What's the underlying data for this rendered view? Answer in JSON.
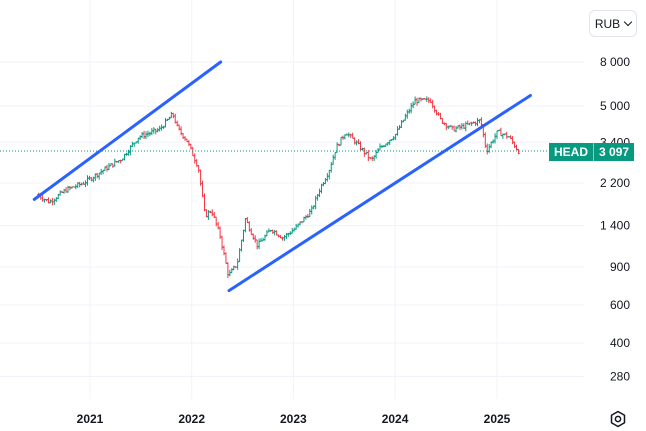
{
  "header": {
    "currency_label": "RUB"
  },
  "price_label": {
    "ticker": "HEAD",
    "value": "3 097",
    "numeric_value": 3097,
    "color": "#089981"
  },
  "icons": {
    "currency_chevron": "chevron-down-icon",
    "settings": "settings-icon"
  },
  "colors": {
    "up": "#089981",
    "down": "#f23645",
    "trendline": "#2962ff",
    "last_price_line": "#089981"
  },
  "chart_data": {
    "type": "ohlc",
    "title": "",
    "xlabel": "",
    "ylabel": "",
    "scale": "log",
    "grid": true,
    "x_ticks": [
      "2021",
      "2022",
      "2023",
      "2024",
      "2025"
    ],
    "x_tick_values": [
      "2021-01-01",
      "2022-01-01",
      "2023-01-01",
      "2024-01-01",
      "2025-01-01"
    ],
    "y_ticks": [
      "8 000",
      "5 000",
      "3 400",
      "2 200",
      "1 400",
      "900",
      "600",
      "400",
      "280"
    ],
    "y_tick_values": [
      8000,
      5000,
      3400,
      2200,
      1400,
      900,
      600,
      400,
      280
    ],
    "x_range": [
      "2020-04-01",
      "2025-12-15"
    ],
    "y_range": [
      210,
      12000
    ],
    "last_price": 3097,
    "series_path": [
      [
        "2020-07-01",
        1950
      ],
      [
        "2020-08-15",
        1800
      ],
      [
        "2020-10-15",
        2050
      ],
      [
        "2020-12-15",
        2200
      ],
      [
        "2021-03-01",
        2550
      ],
      [
        "2021-05-01",
        2850
      ],
      [
        "2021-07-01",
        3600
      ],
      [
        "2021-09-15",
        3900
      ],
      [
        "2021-11-01",
        4600
      ],
      [
        "2021-11-20",
        3900
      ],
      [
        "2021-12-20",
        3500
      ],
      [
        "2022-02-01",
        2600
      ],
      [
        "2022-02-25",
        1550
      ],
      [
        "2022-03-20",
        1650
      ],
      [
        "2022-04-20",
        1250
      ],
      [
        "2022-05-20",
        820
      ],
      [
        "2022-06-20",
        930
      ],
      [
        "2022-07-20",
        1500
      ],
      [
        "2022-09-01",
        1130
      ],
      [
        "2022-10-20",
        1350
      ],
      [
        "2022-12-01",
        1230
      ],
      [
        "2023-01-15",
        1360
      ],
      [
        "2023-03-15",
        1650
      ],
      [
        "2023-04-15",
        2100
      ],
      [
        "2023-05-15",
        2500
      ],
      [
        "2023-06-10",
        3200
      ],
      [
        "2023-07-15",
        3800
      ],
      [
        "2023-08-20",
        3400
      ],
      [
        "2023-10-15",
        2800
      ],
      [
        "2023-11-15",
        3200
      ],
      [
        "2024-01-10",
        3700
      ],
      [
        "2024-02-15",
        4500
      ],
      [
        "2024-03-20",
        5300
      ],
      [
        "2024-05-15",
        5300
      ],
      [
        "2024-06-20",
        4300
      ],
      [
        "2024-08-01",
        3900
      ],
      [
        "2024-09-15",
        4050
      ],
      [
        "2024-11-10",
        4300
      ],
      [
        "2024-12-01",
        3100
      ],
      [
        "2025-01-10",
        3800
      ],
      [
        "2025-02-20",
        3600
      ],
      [
        "2025-03-25",
        3097
      ]
    ],
    "annotations": [
      {
        "type": "trendline",
        "from": [
          "2020-06-15",
          1850
        ],
        "to": [
          "2022-04-15",
          8000
        ]
      },
      {
        "type": "trendline",
        "from": [
          "2022-05-15",
          700
        ],
        "to": [
          "2025-05-01",
          5600
        ]
      }
    ]
  }
}
